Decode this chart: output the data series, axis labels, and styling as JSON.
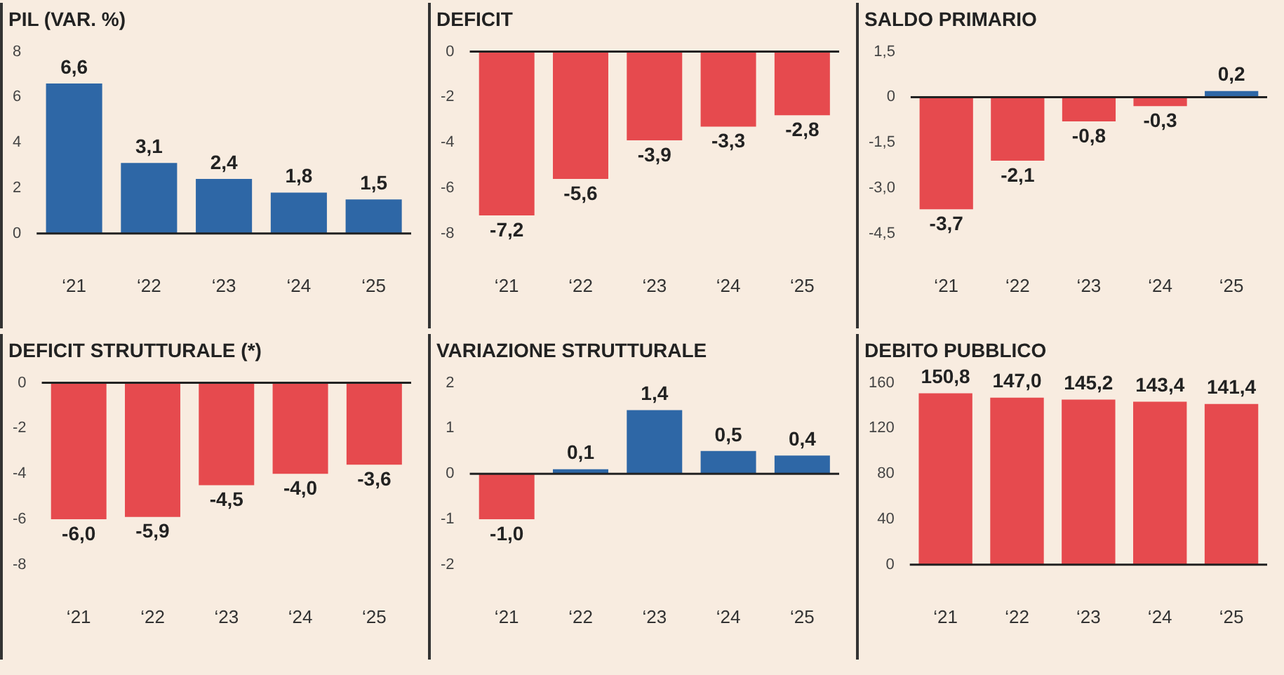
{
  "chart_data": [
    {
      "type": "bar",
      "title": "PIL (VAR. %)",
      "categories": [
        "‘21",
        "‘22",
        "‘23",
        "‘24",
        "‘25"
      ],
      "values": [
        6.6,
        3.1,
        2.4,
        1.8,
        1.5
      ],
      "colors": [
        "#2e67a6",
        "#2e67a6",
        "#2e67a6",
        "#2e67a6",
        "#2e67a6"
      ],
      "value_labels": [
        "6,6",
        "3,1",
        "2,4",
        "1,8",
        "1,5"
      ],
      "ylim": [
        0,
        8
      ],
      "yticks": [
        0,
        2,
        4,
        6,
        8
      ]
    },
    {
      "type": "bar",
      "title": "DEFICIT",
      "categories": [
        "‘21",
        "‘22",
        "‘23",
        "‘24",
        "‘25"
      ],
      "values": [
        -7.2,
        -5.6,
        -3.9,
        -3.3,
        -2.8
      ],
      "colors": [
        "#e64a4e",
        "#e64a4e",
        "#e64a4e",
        "#e64a4e",
        "#e64a4e"
      ],
      "value_labels": [
        "-7,2",
        "-5,6",
        "-3,9",
        "-3,3",
        "-2,8"
      ],
      "ylim": [
        -8,
        0
      ],
      "yticks": [
        -8,
        -6,
        -4,
        -2,
        0
      ]
    },
    {
      "type": "bar",
      "title": "SALDO PRIMARIO",
      "categories": [
        "‘21",
        "‘22",
        "‘23",
        "‘24",
        "‘25"
      ],
      "values": [
        -3.7,
        -2.1,
        -0.8,
        -0.3,
        0.2
      ],
      "colors": [
        "#e64a4e",
        "#e64a4e",
        "#e64a4e",
        "#e64a4e",
        "#2e67a6"
      ],
      "value_labels": [
        "-3,7",
        "-2,1",
        "-0,8",
        "-0,3",
        "0,2"
      ],
      "ylim": [
        -4.5,
        1.5
      ],
      "yticks": [
        {
          "value": -4.5,
          "label": "-4,5"
        },
        {
          "value": -3,
          "label": "-3,0"
        },
        {
          "value": -1.5,
          "label": "-1,5"
        },
        0,
        {
          "value": 1.5,
          "label": "1,5"
        }
      ]
    },
    {
      "type": "bar",
      "title": "DEFICIT STRUTTURALE (*)",
      "categories": [
        "‘21",
        "‘22",
        "‘23",
        "‘24",
        "‘25"
      ],
      "values": [
        -6.0,
        -5.9,
        -4.5,
        -4.0,
        -3.6
      ],
      "colors": [
        "#e64a4e",
        "#e64a4e",
        "#e64a4e",
        "#e64a4e",
        "#e64a4e"
      ],
      "value_labels": [
        "-6,0",
        "-5,9",
        "-4,5",
        "-4,0",
        "-3,6"
      ],
      "ylim": [
        -8,
        0
      ],
      "yticks": [
        -8,
        -6,
        -4,
        -2,
        0
      ]
    },
    {
      "type": "bar",
      "title": "VARIAZIONE STRUTTURALE",
      "categories": [
        "‘21",
        "‘22",
        "‘23",
        "‘24",
        "‘25"
      ],
      "values": [
        -1.0,
        0.1,
        1.4,
        0.5,
        0.4
      ],
      "colors": [
        "#e64a4e",
        "#2e67a6",
        "#2e67a6",
        "#2e67a6",
        "#2e67a6"
      ],
      "value_labels": [
        "-1,0",
        "0,1",
        "1,4",
        "0,5",
        "0,4"
      ],
      "ylim": [
        -2,
        2
      ],
      "yticks": [
        -2,
        -1,
        0,
        1,
        2
      ]
    },
    {
      "type": "bar",
      "title": "DEBITO PUBBLICO",
      "categories": [
        "‘21",
        "‘22",
        "‘23",
        "‘24",
        "‘25"
      ],
      "values": [
        150.8,
        147.0,
        145.2,
        143.4,
        141.4
      ],
      "colors": [
        "#e64a4e",
        "#e64a4e",
        "#e64a4e",
        "#e64a4e",
        "#e64a4e"
      ],
      "value_labels": [
        "150,8",
        "147,0",
        "145,2",
        "143,4",
        "141,4"
      ],
      "ylim": [
        0,
        160
      ],
      "yticks": [
        0,
        40,
        80,
        120,
        160
      ]
    }
  ]
}
